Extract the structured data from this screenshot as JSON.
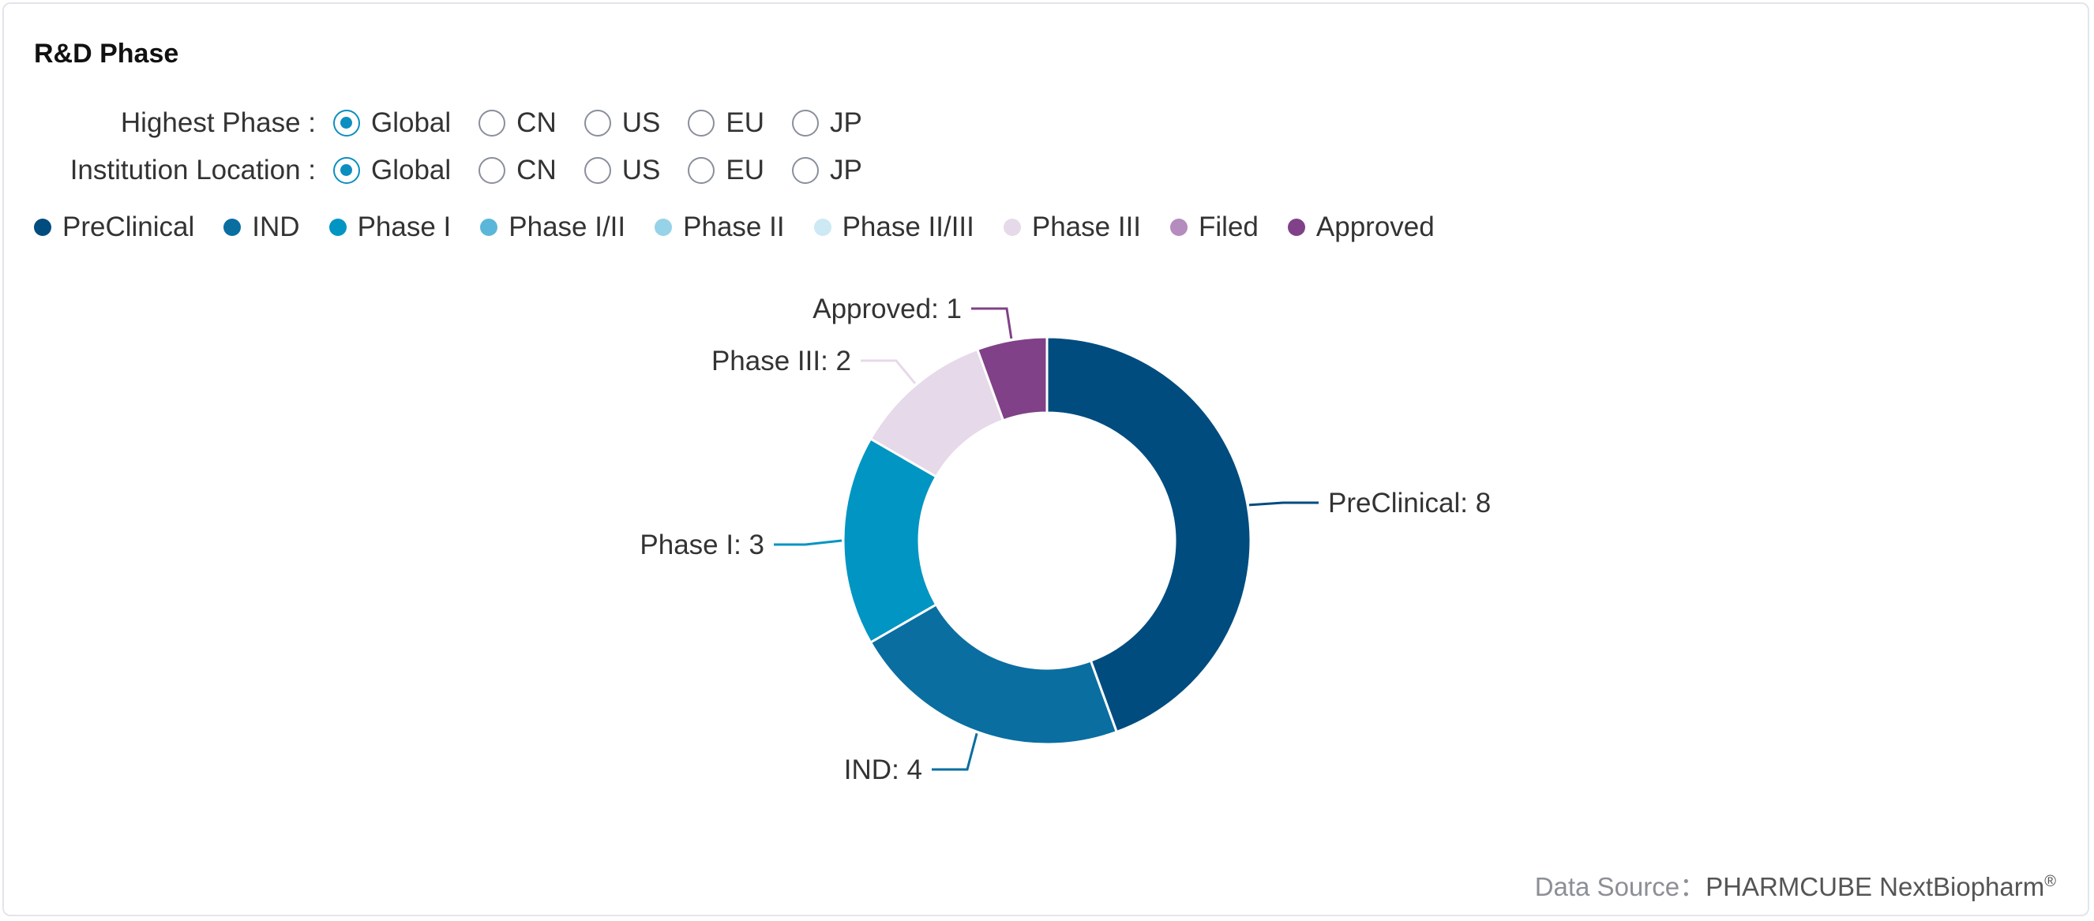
{
  "title": "R&D Phase",
  "filters": [
    {
      "label": "Highest Phase :",
      "options": [
        "Global",
        "CN",
        "US",
        "EU",
        "JP"
      ],
      "selected": 0
    },
    {
      "label": "Institution Location :",
      "options": [
        "Global",
        "CN",
        "US",
        "EU",
        "JP"
      ],
      "selected": 0
    }
  ],
  "legend": [
    {
      "label": "PreClinical",
      "color": "#004c7f"
    },
    {
      "label": "IND",
      "color": "#0a6ea1"
    },
    {
      "label": "Phase I",
      "color": "#0195c3"
    },
    {
      "label": "Phase I/II",
      "color": "#5bb7d9"
    },
    {
      "label": "Phase II",
      "color": "#96d2e8"
    },
    {
      "label": "Phase II/III",
      "color": "#cce9f4"
    },
    {
      "label": "Phase III",
      "color": "#e6d9e9"
    },
    {
      "label": "Filed",
      "color": "#b48cbe"
    },
    {
      "label": "Approved",
      "color": "#804188"
    }
  ],
  "chart_data": {
    "type": "pie",
    "donut": true,
    "categories": [
      "PreClinical",
      "IND",
      "Phase I",
      "Phase I/II",
      "Phase II",
      "Phase II/III",
      "Phase III",
      "Filed",
      "Approved"
    ],
    "values": [
      8,
      4,
      3,
      0,
      0,
      0,
      2,
      0,
      1
    ],
    "colors": [
      "#004c7f",
      "#0a6ea1",
      "#0195c3",
      "#5bb7d9",
      "#96d2e8",
      "#cce9f4",
      "#e6d9e9",
      "#b48cbe",
      "#804188"
    ],
    "labels": [
      "PreClinical: 8",
      "IND: 4",
      "Phase I: 3",
      "",
      "",
      "",
      "Phase III: 2",
      "",
      "Approved: 1"
    ],
    "legend_position": "top-left"
  },
  "footer": {
    "prefix": "Data Source：",
    "source": "PHARMCUBE NextBiopharm",
    "mark": "®"
  }
}
